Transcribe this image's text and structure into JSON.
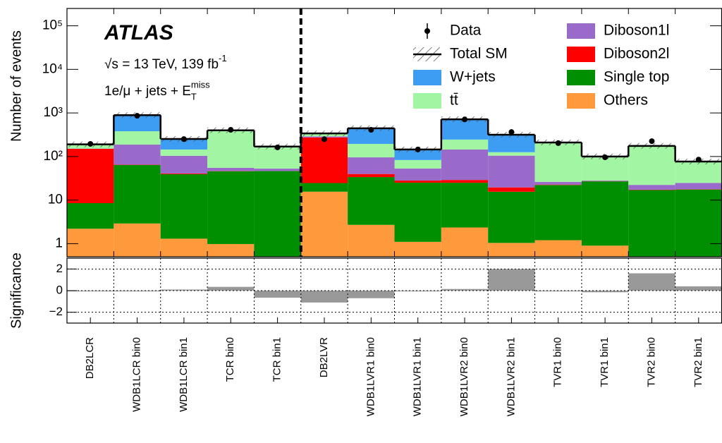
{
  "chart_data": [
    {
      "type": "stacked_bar",
      "y_label": "Number of events",
      "log_scale": true,
      "ylim": [
        0.5,
        250000
      ],
      "yticks": [
        1,
        10,
        {
          "value": 100,
          "label": "10²"
        },
        {
          "value": 1000,
          "label": "10³"
        },
        {
          "value": 10000,
          "label": "10⁴"
        },
        {
          "value": 100000,
          "label": "10⁵"
        }
      ],
      "experiment": "ATLAS",
      "annotations": [
        {
          "text": "√s = 13 TeV, 139 fb",
          "sup": "-1"
        },
        {
          "text": "1e/μ + jets + E",
          "sub": "T",
          "sup": "miss"
        }
      ],
      "legend_position": "upper right",
      "data": {
        "name": "Data",
        "color": "#000000",
        "values": [
          195,
          860,
          250,
          410,
          162,
          250,
          410,
          145,
          710,
          365,
          203,
          96,
          225,
          85
        ]
      },
      "total": {
        "name": "Total SM"
      },
      "series": [
        {
          "name": "W+jets",
          "color": "#3d9df3",
          "values": [
            5,
            510,
            108,
            5,
            2,
            10,
            250,
            62,
            470,
            190,
            7,
            4,
            7,
            3
          ]
        },
        {
          "name": "tt̄",
          "color": "#a2f5a2",
          "values": [
            33,
            192,
            41,
            340,
            115,
            40,
            99,
            30,
            100,
            21,
            177,
            68,
            146,
            49
          ]
        },
        {
          "name": "Diboson1l",
          "color": "#9a6acb",
          "values": [
            2,
            123,
            63,
            8.5,
            6,
            15,
            56,
            25,
            116,
            85,
            3.5,
            1,
            5,
            7
          ]
        },
        {
          "name": "Diboson2l",
          "color": "#ff0000",
          "values": [
            141.5,
            1,
            1.5,
            0.5,
            0.3,
            250,
            6,
            3,
            4,
            4,
            0.5,
            0.3,
            0.3,
            0.3
          ]
        },
        {
          "name": "Single top",
          "color": "#008f00",
          "values": [
            6.3,
            61,
            38,
            45,
            46,
            9,
            31,
            24,
            22.6,
            14.5,
            21,
            26,
            16.5,
            17
          ]
        },
        {
          "name": "Others",
          "color": "#ff9a3c",
          "values": [
            2.2,
            2.9,
            1.3,
            0.98,
            0.4,
            15.6,
            2.7,
            1.1,
            2.35,
            1.04,
            1.2,
            0.9,
            0.5,
            0.5
          ]
        }
      ]
    },
    {
      "type": "bar",
      "y_label": "Significance",
      "categories": [
        "DB2LCR",
        "WDB1LCR bin0",
        "WDB1LCR bin1",
        "TCR bin0",
        "TCR bin1",
        "DB2LVR",
        "WDB1LVR1 bin0",
        "WDB1LVR1 bin1",
        "WDB1LVR2 bin0",
        "WDB1LVR2 bin1",
        "TVR1 bin0",
        "TVR1 bin1",
        "TVR2 bin0",
        "TVR2 bin1"
      ],
      "values": [
        -0.02,
        -0.05,
        0.1,
        0.35,
        -0.65,
        -1.1,
        -0.7,
        -0.05,
        0.15,
        2.0,
        -0.03,
        -0.15,
        1.6,
        0.4
      ],
      "color": "#999999",
      "ylim": [
        -3,
        3
      ],
      "yticks": [
        {
          "value": -2,
          "label": "−2"
        },
        0,
        2
      ],
      "grid": true
    }
  ]
}
